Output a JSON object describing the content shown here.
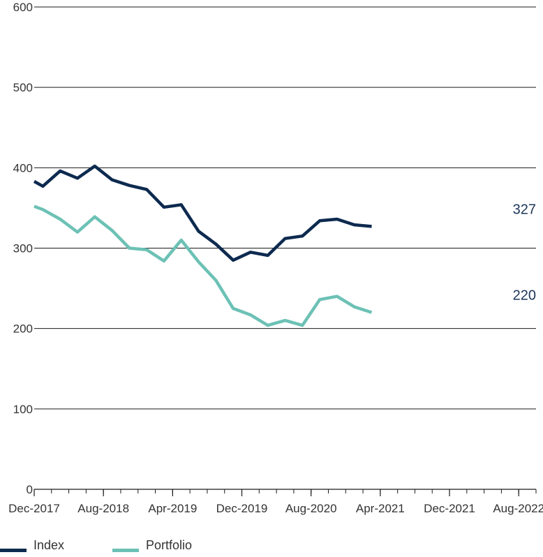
{
  "chart_data": {
    "type": "line",
    "x": [
      "Dec-2017",
      "Feb-2018",
      "Apr-2018",
      "Jun-2018",
      "Aug-2018",
      "Oct-2018",
      "Dec-2018",
      "Feb-2019",
      "Apr-2019",
      "Jun-2019",
      "Aug-2019",
      "Oct-2019",
      "Dec-2019",
      "Feb-2020",
      "Apr-2020",
      "Jun-2020",
      "Aug-2020",
      "Oct-2020",
      "Dec-2020",
      "Feb-2021",
      "Apr-2021",
      "Jun-2021",
      "Aug-2021",
      "Oct-2021",
      "Dec-2021",
      "Feb-2022",
      "Apr-2022",
      "Jun-2022",
      "Aug-2022",
      "Oct-2022"
    ],
    "x_tick_labels": [
      "Dec-2017",
      "Aug-2018",
      "Apr-2019",
      "Dec-2019",
      "Aug-2020",
      "Apr-2021",
      "Dec-2021",
      "Aug-2022"
    ],
    "y_ticks": [
      0,
      100,
      200,
      300,
      400,
      500,
      600
    ],
    "ylim": [
      0,
      600
    ],
    "grid": "horizontal",
    "legend_position": "bottom-left",
    "series": [
      {
        "name": "Index",
        "color": "#0d2a4f",
        "end_label": "327",
        "points": [
          [
            "Dec-2017",
            383
          ],
          [
            "Jan-2018",
            377
          ],
          [
            "Mar-2018",
            396
          ],
          [
            "May-2018",
            387
          ],
          [
            "Jul-2018",
            402
          ],
          [
            "Sep-2018",
            385
          ],
          [
            "Nov-2018",
            378
          ],
          [
            "Jan-2019",
            373
          ],
          [
            "Mar-2019",
            351
          ],
          [
            "May-2019",
            354
          ],
          [
            "Jul-2019",
            321
          ],
          [
            "Sep-2019",
            305
          ],
          [
            "Nov-2019",
            285
          ],
          [
            "Jan-2020",
            295
          ],
          [
            "Mar-2020",
            291
          ],
          [
            "May-2020",
            312
          ],
          [
            "Jul-2020",
            315
          ],
          [
            "Sep-2020",
            334
          ],
          [
            "Nov-2020",
            336
          ],
          [
            "Jan-2021",
            329
          ],
          [
            "Mar-2021",
            327
          ]
        ]
      },
      {
        "name": "Portfolio",
        "color": "#6cc1b5",
        "end_label": "220",
        "points": [
          [
            "Dec-2017",
            352
          ],
          [
            "Jan-2018",
            348
          ],
          [
            "Mar-2018",
            336
          ],
          [
            "May-2018",
            320
          ],
          [
            "Jul-2018",
            339
          ],
          [
            "Sep-2018",
            322
          ],
          [
            "Nov-2018",
            300
          ],
          [
            "Jan-2019",
            298
          ],
          [
            "Mar-2019",
            284
          ],
          [
            "May-2019",
            310
          ],
          [
            "Jul-2019",
            283
          ],
          [
            "Sep-2019",
            260
          ],
          [
            "Nov-2019",
            225
          ],
          [
            "Jan-2020",
            217
          ],
          [
            "Mar-2020",
            204
          ],
          [
            "May-2020",
            210
          ],
          [
            "Jul-2020",
            204
          ],
          [
            "Sep-2020",
            236
          ],
          [
            "Nov-2020",
            240
          ],
          [
            "Jan-2021",
            227
          ],
          [
            "Mar-2021",
            220
          ]
        ]
      }
    ]
  }
}
